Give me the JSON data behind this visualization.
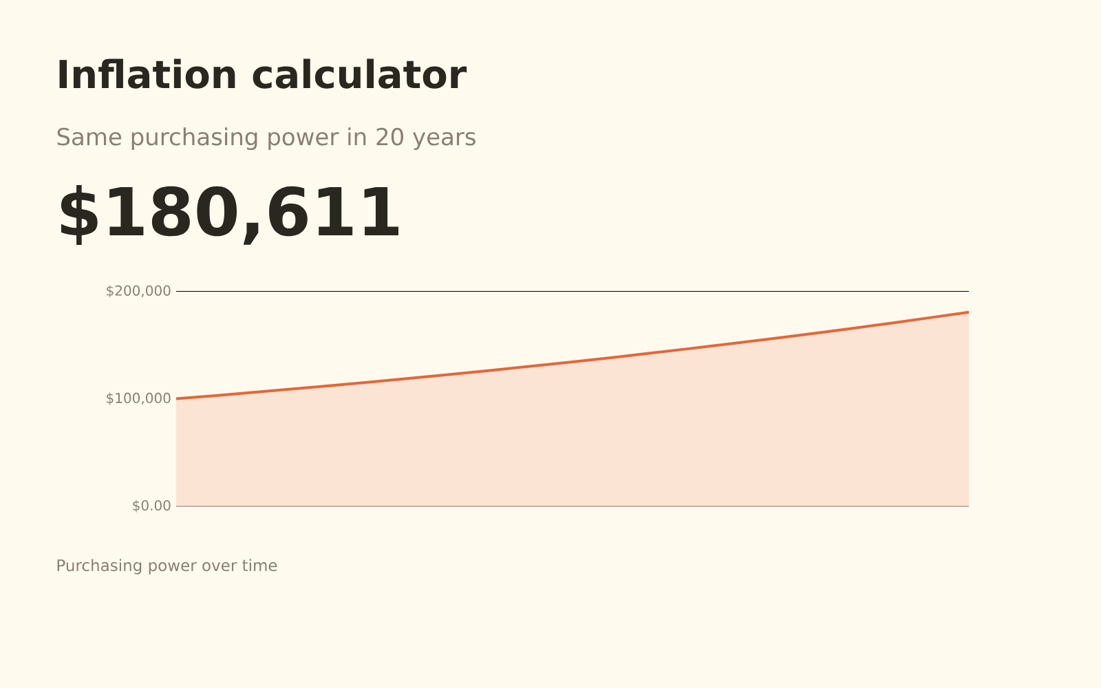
{
  "chart_data": {
    "type": "area",
    "title": "Inflation calculator",
    "subtitle": "Same purchasing power in 20 years",
    "annotations": [
      "$180,611",
      "Purchasing power over time"
    ],
    "categories": [
      null,
      null,
      null,
      null,
      null,
      null,
      null,
      null,
      null,
      null,
      null,
      null,
      null,
      null,
      null,
      null,
      null,
      null,
      null,
      null,
      null
    ],
    "values": [
      100000,
      103000,
      106100,
      109300,
      112600,
      115900,
      119400,
      123000,
      126700,
      130500,
      134400,
      138400,
      142600,
      146900,
      151300,
      155800,
      160500,
      165300,
      170200,
      175400,
      180611
    ],
    "color": "#e2673a",
    "ylim": [
      0,
      200000
    ],
    "yticks": [
      {
        "value": 0,
        "label": "$0.00"
      },
      {
        "value": 100000,
        "label": "$100,000"
      },
      {
        "value": 200000,
        "label": "$200,000"
      }
    ],
    "grid": "y",
    "tick_labels": "y"
  }
}
